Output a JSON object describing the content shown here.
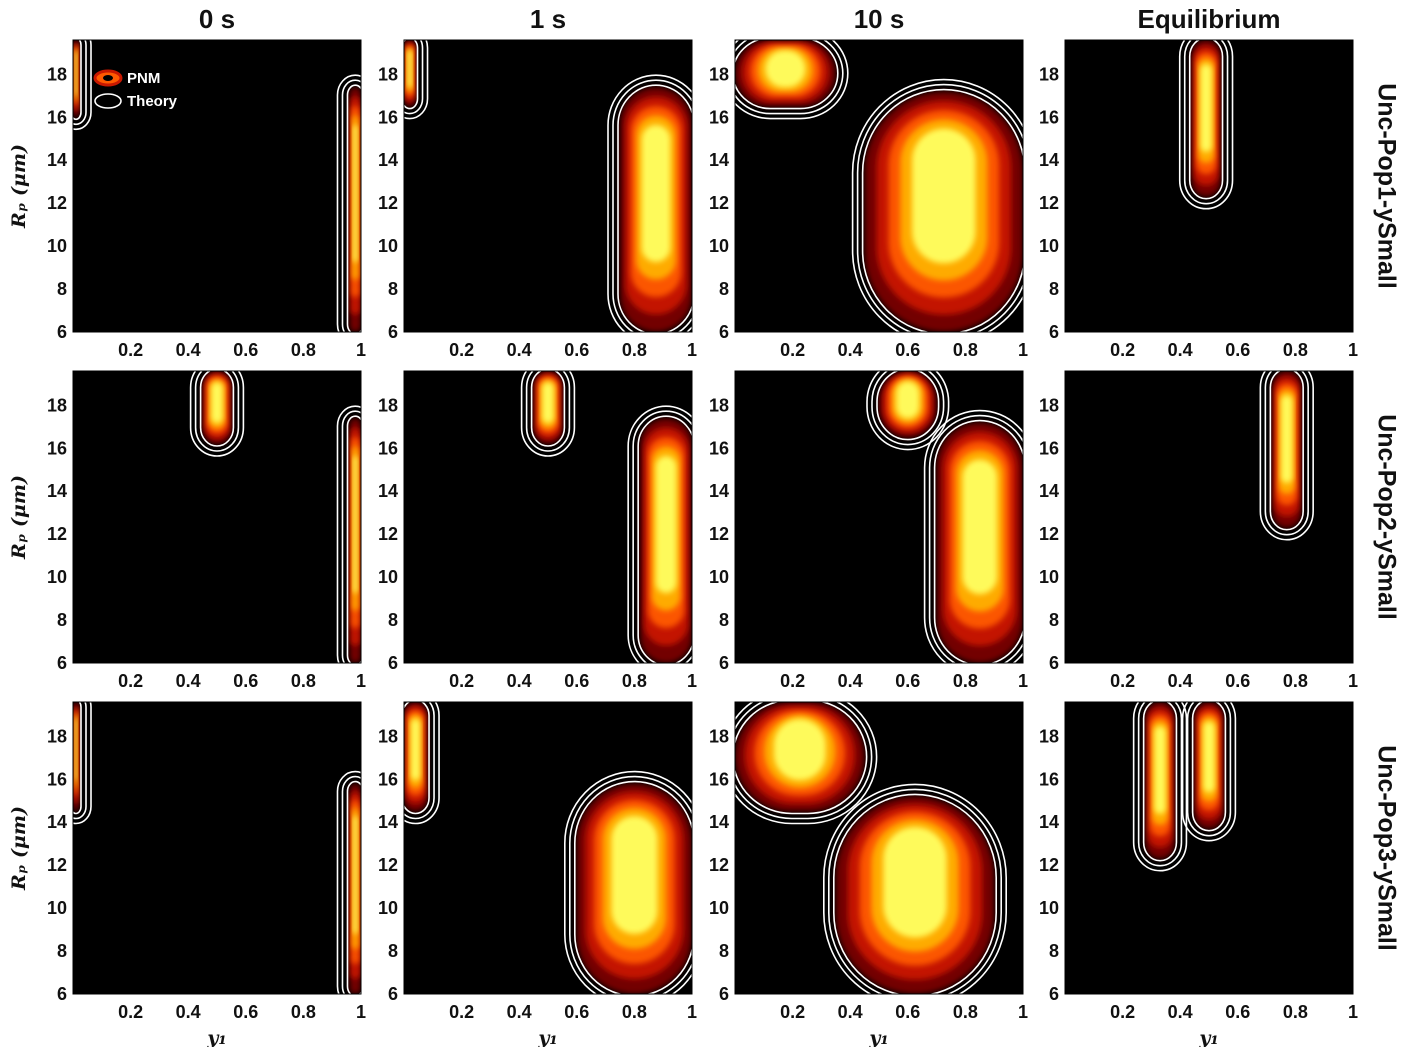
{
  "chart_data": {
    "type": "heatmap",
    "description_kind": "contour-grid",
    "columns": [
      "0 s",
      "1 s",
      "10 s",
      "Equilibrium"
    ],
    "rows": [
      "Unc-Pop1-ySmall",
      "Unc-Pop2-ySmall",
      "Unc-Pop3-ySmall"
    ],
    "xlabel": "y₁",
    "ylabel": "Rₚ (μm)",
    "xlim": [
      0,
      1
    ],
    "ylim": [
      6,
      19.6
    ],
    "xticks": [
      "0.2",
      "0.4",
      "0.6",
      "0.8",
      "1"
    ],
    "yticks": [
      "6",
      "8",
      "10",
      "12",
      "14",
      "16",
      "18"
    ],
    "legend": {
      "items": [
        "PNM",
        "Theory"
      ],
      "position": "top-left"
    },
    "colors": {
      "background": "#000000",
      "heat": [
        "#7a0000",
        "#c81800",
        "#ff5a00",
        "#ffb000",
        "#ffff60"
      ],
      "theory": "#ffffff"
    },
    "panels": [
      [
        {
          "blobs": [
            {
              "x": [
                0,
                0.02
              ],
              "y": [
                16,
                19.6
              ]
            },
            {
              "x": [
                0.96,
                1.0
              ],
              "y": [
                6,
                17.4
              ]
            }
          ]
        },
        {
          "blobs": [
            {
              "x": [
                0,
                0.04
              ],
              "y": [
                16.5,
                19.6
              ]
            },
            {
              "x": [
                0.75,
                1.0
              ],
              "y": [
                6,
                17.4
              ]
            }
          ]
        },
        {
          "blobs": [
            {
              "x": [
                0,
                0.35
              ],
              "y": [
                16.5,
                19.6
              ]
            },
            {
              "x": [
                0.45,
                1.0
              ],
              "y": [
                6,
                17.2
              ]
            }
          ]
        },
        {
          "blobs": [
            {
              "x": [
                0.44,
                0.54
              ],
              "y": [
                12.3,
                19.6
              ]
            }
          ]
        }
      ],
      [
        {
          "blobs": [
            {
              "x": [
                0.45,
                0.55
              ],
              "y": [
                16.2,
                19.6
              ]
            },
            {
              "x": [
                0.96,
                1.0
              ],
              "y": [
                6,
                17.4
              ]
            }
          ]
        },
        {
          "blobs": [
            {
              "x": [
                0.45,
                0.55
              ],
              "y": [
                16.2,
                19.6
              ]
            },
            {
              "x": [
                0.82,
                1.0
              ],
              "y": [
                6,
                17.4
              ]
            }
          ]
        },
        {
          "blobs": [
            {
              "x": [
                0.5,
                0.7
              ],
              "y": [
                16.5,
                19.6
              ]
            },
            {
              "x": [
                0.7,
                1.0
              ],
              "y": [
                6,
                17.2
              ]
            }
          ]
        },
        {
          "blobs": [
            {
              "x": [
                0.72,
                0.82
              ],
              "y": [
                12.3,
                19.6
              ]
            }
          ]
        }
      ],
      [
        {
          "blobs": [
            {
              "x": [
                0,
                0.02
              ],
              "y": [
                14.5,
                19.6
              ]
            },
            {
              "x": [
                0.96,
                1.0
              ],
              "y": [
                6,
                15.8
              ]
            }
          ]
        },
        {
          "blobs": [
            {
              "x": [
                0,
                0.08
              ],
              "y": [
                14.5,
                19.6
              ]
            },
            {
              "x": [
                0.6,
                1.0
              ],
              "y": [
                6,
                15.8
              ]
            }
          ]
        },
        {
          "blobs": [
            {
              "x": [
                0,
                0.45
              ],
              "y": [
                14.5,
                19.6
              ]
            },
            {
              "x": [
                0.35,
                0.9
              ],
              "y": [
                6,
                15.2
              ]
            }
          ]
        },
        {
          "blobs": [
            {
              "x": [
                0.28,
                0.38
              ],
              "y": [
                12.3,
                19.6
              ]
            },
            {
              "x": [
                0.45,
                0.55
              ],
              "y": [
                13.7,
                19.6
              ]
            }
          ]
        }
      ]
    ]
  }
}
